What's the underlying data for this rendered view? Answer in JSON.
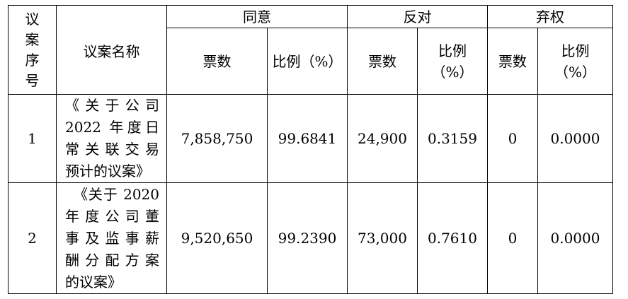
{
  "headers": {
    "index": [
      "议",
      "案",
      "序",
      "号"
    ],
    "name": "议案名称",
    "agree": "同意",
    "oppose": "反对",
    "abstain": "弃权",
    "votes": "票数",
    "ratio": "比例（%）",
    "ratio_line1": "比例",
    "ratio_line2": "（%）"
  },
  "rows": [
    {
      "index": "1",
      "name_lines": [
        "《关于公司",
        "2022 年度日",
        "常关联交易",
        "预计的议案》"
      ],
      "agree_votes": "7,858,750",
      "agree_ratio": "99.6841",
      "oppose_votes": "24,900",
      "oppose_ratio": "0.3159",
      "abstain_votes": "0",
      "abstain_ratio": "0.0000"
    },
    {
      "index": "2",
      "name_lines": [
        "《关于 2020",
        "年度公司董",
        "事及监事薪",
        "酬分配方案",
        "的议案》"
      ],
      "agree_votes": "9,520,650",
      "agree_ratio": "99.2390",
      "oppose_votes": "73,000",
      "oppose_ratio": "0.7610",
      "abstain_votes": "0",
      "abstain_ratio": "0.0000"
    }
  ]
}
